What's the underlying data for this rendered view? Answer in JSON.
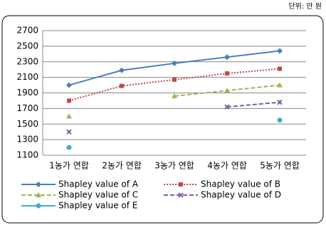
{
  "chart_data": {
    "type": "line",
    "unit_note": "단위: 만 원",
    "categories": [
      "1농가 연합",
      "2농가 연합",
      "3농가 연합",
      "4농가 연합",
      "5농가 연합"
    ],
    "series": [
      {
        "name": "Shapley value of A",
        "color": "#4a7ebb",
        "marker": "diamond",
        "dash": "solid",
        "values": [
          2000,
          2190,
          2280,
          2360,
          2440
        ]
      },
      {
        "name": "Shapley value of B",
        "color": "#be4b48",
        "marker": "square",
        "dash": "dotted",
        "values": [
          1800,
          1990,
          2070,
          2150,
          2210
        ]
      },
      {
        "name": "Shapley value of C",
        "color": "#98b954",
        "marker": "triangle",
        "dash": "dashed",
        "values": [
          1600,
          null,
          1860,
          1930,
          2000
        ]
      },
      {
        "name": "Shapley value of D",
        "color": "#7d60a0",
        "marker": "x",
        "dash": "dashed",
        "values": [
          1400,
          null,
          null,
          1720,
          1780
        ]
      },
      {
        "name": "Shapley value of E",
        "color": "#46aac5",
        "marker": "circle",
        "dash": "solid",
        "values": [
          1200,
          null,
          null,
          null,
          1550
        ]
      }
    ],
    "ylim": [
      1100,
      2700
    ],
    "yticks": [
      1100,
      1300,
      1500,
      1700,
      1900,
      2100,
      2300,
      2500,
      2700
    ],
    "grid": true
  }
}
